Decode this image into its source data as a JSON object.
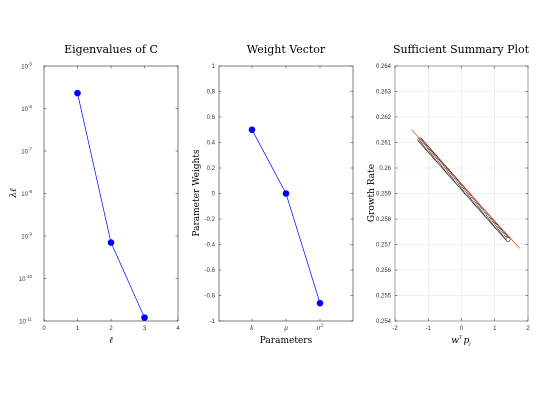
{
  "chart_data": [
    {
      "type": "line",
      "title": "Eigenvalues of C",
      "xlabel": "ℓ",
      "ylabel": "λℓ",
      "yscale": "log",
      "xlim": [
        0,
        4
      ],
      "ylim_exponents": [
        -11,
        -5
      ],
      "x_ticks": [
        "0",
        "1",
        "2",
        "3",
        "4"
      ],
      "y_tick_labels": [
        {
          "base": "10",
          "exp": "-11"
        },
        {
          "base": "10",
          "exp": "-10"
        },
        {
          "base": "10",
          "exp": "-9"
        },
        {
          "base": "10",
          "exp": "-8"
        },
        {
          "base": "10",
          "exp": "-7"
        },
        {
          "base": "10",
          "exp": "-6"
        },
        {
          "base": "10",
          "exp": "-5"
        }
      ],
      "x": [
        1,
        2,
        3
      ],
      "y": [
        2.3e-06,
        7e-10,
        1.2e-11
      ],
      "line_color": "#0000ff",
      "marker_color": "#0000ff",
      "grid": false
    },
    {
      "type": "line",
      "title": "Weight Vector",
      "xlabel": "Parameters",
      "ylabel": "Parameter Weights",
      "ylim": [
        -1,
        1
      ],
      "y_ticks": [
        "-1",
        "-0.8",
        "-0.6",
        "-0.4",
        "-0.2",
        "0",
        "0.2",
        "0.4",
        "0.6",
        "0.8",
        "1"
      ],
      "categories": [
        {
          "base": "k",
          "sup": ""
        },
        {
          "base": "μ",
          "sup": ""
        },
        {
          "base": "σ",
          "sup": "2"
        }
      ],
      "values": [
        0.5,
        0.0,
        -0.86
      ],
      "line_color": "#0000ff",
      "marker_color": "#0000ff",
      "grid": false
    },
    {
      "type": "scatter",
      "title": "Sufficient Summary Plot",
      "xlabel": {
        "base": "w",
        "sup": "T",
        "rest": "p",
        "sub": "j"
      },
      "ylabel": "Growth Rate",
      "xlim": [
        -2,
        2
      ],
      "ylim": [
        0.254,
        0.264
      ],
      "x_ticks": [
        "-2",
        "-1",
        "0",
        "1",
        "2"
      ],
      "y_ticks": [
        "0.254",
        "0.255",
        "0.256",
        "0.257",
        "0.258",
        "0.259",
        "0.26",
        "0.261",
        "0.262",
        "0.263",
        "0.264"
      ],
      "scatter_range": {
        "x_start": -1.25,
        "y_start": 0.2611,
        "x_end": 1.4,
        "y_end": 0.2572
      },
      "fit_line": {
        "x": [
          -1.5,
          1.75
        ],
        "y": [
          0.2615,
          0.25685
        ],
        "color": "#e8542b"
      },
      "marker_color": "#000000",
      "grid": true
    }
  ]
}
